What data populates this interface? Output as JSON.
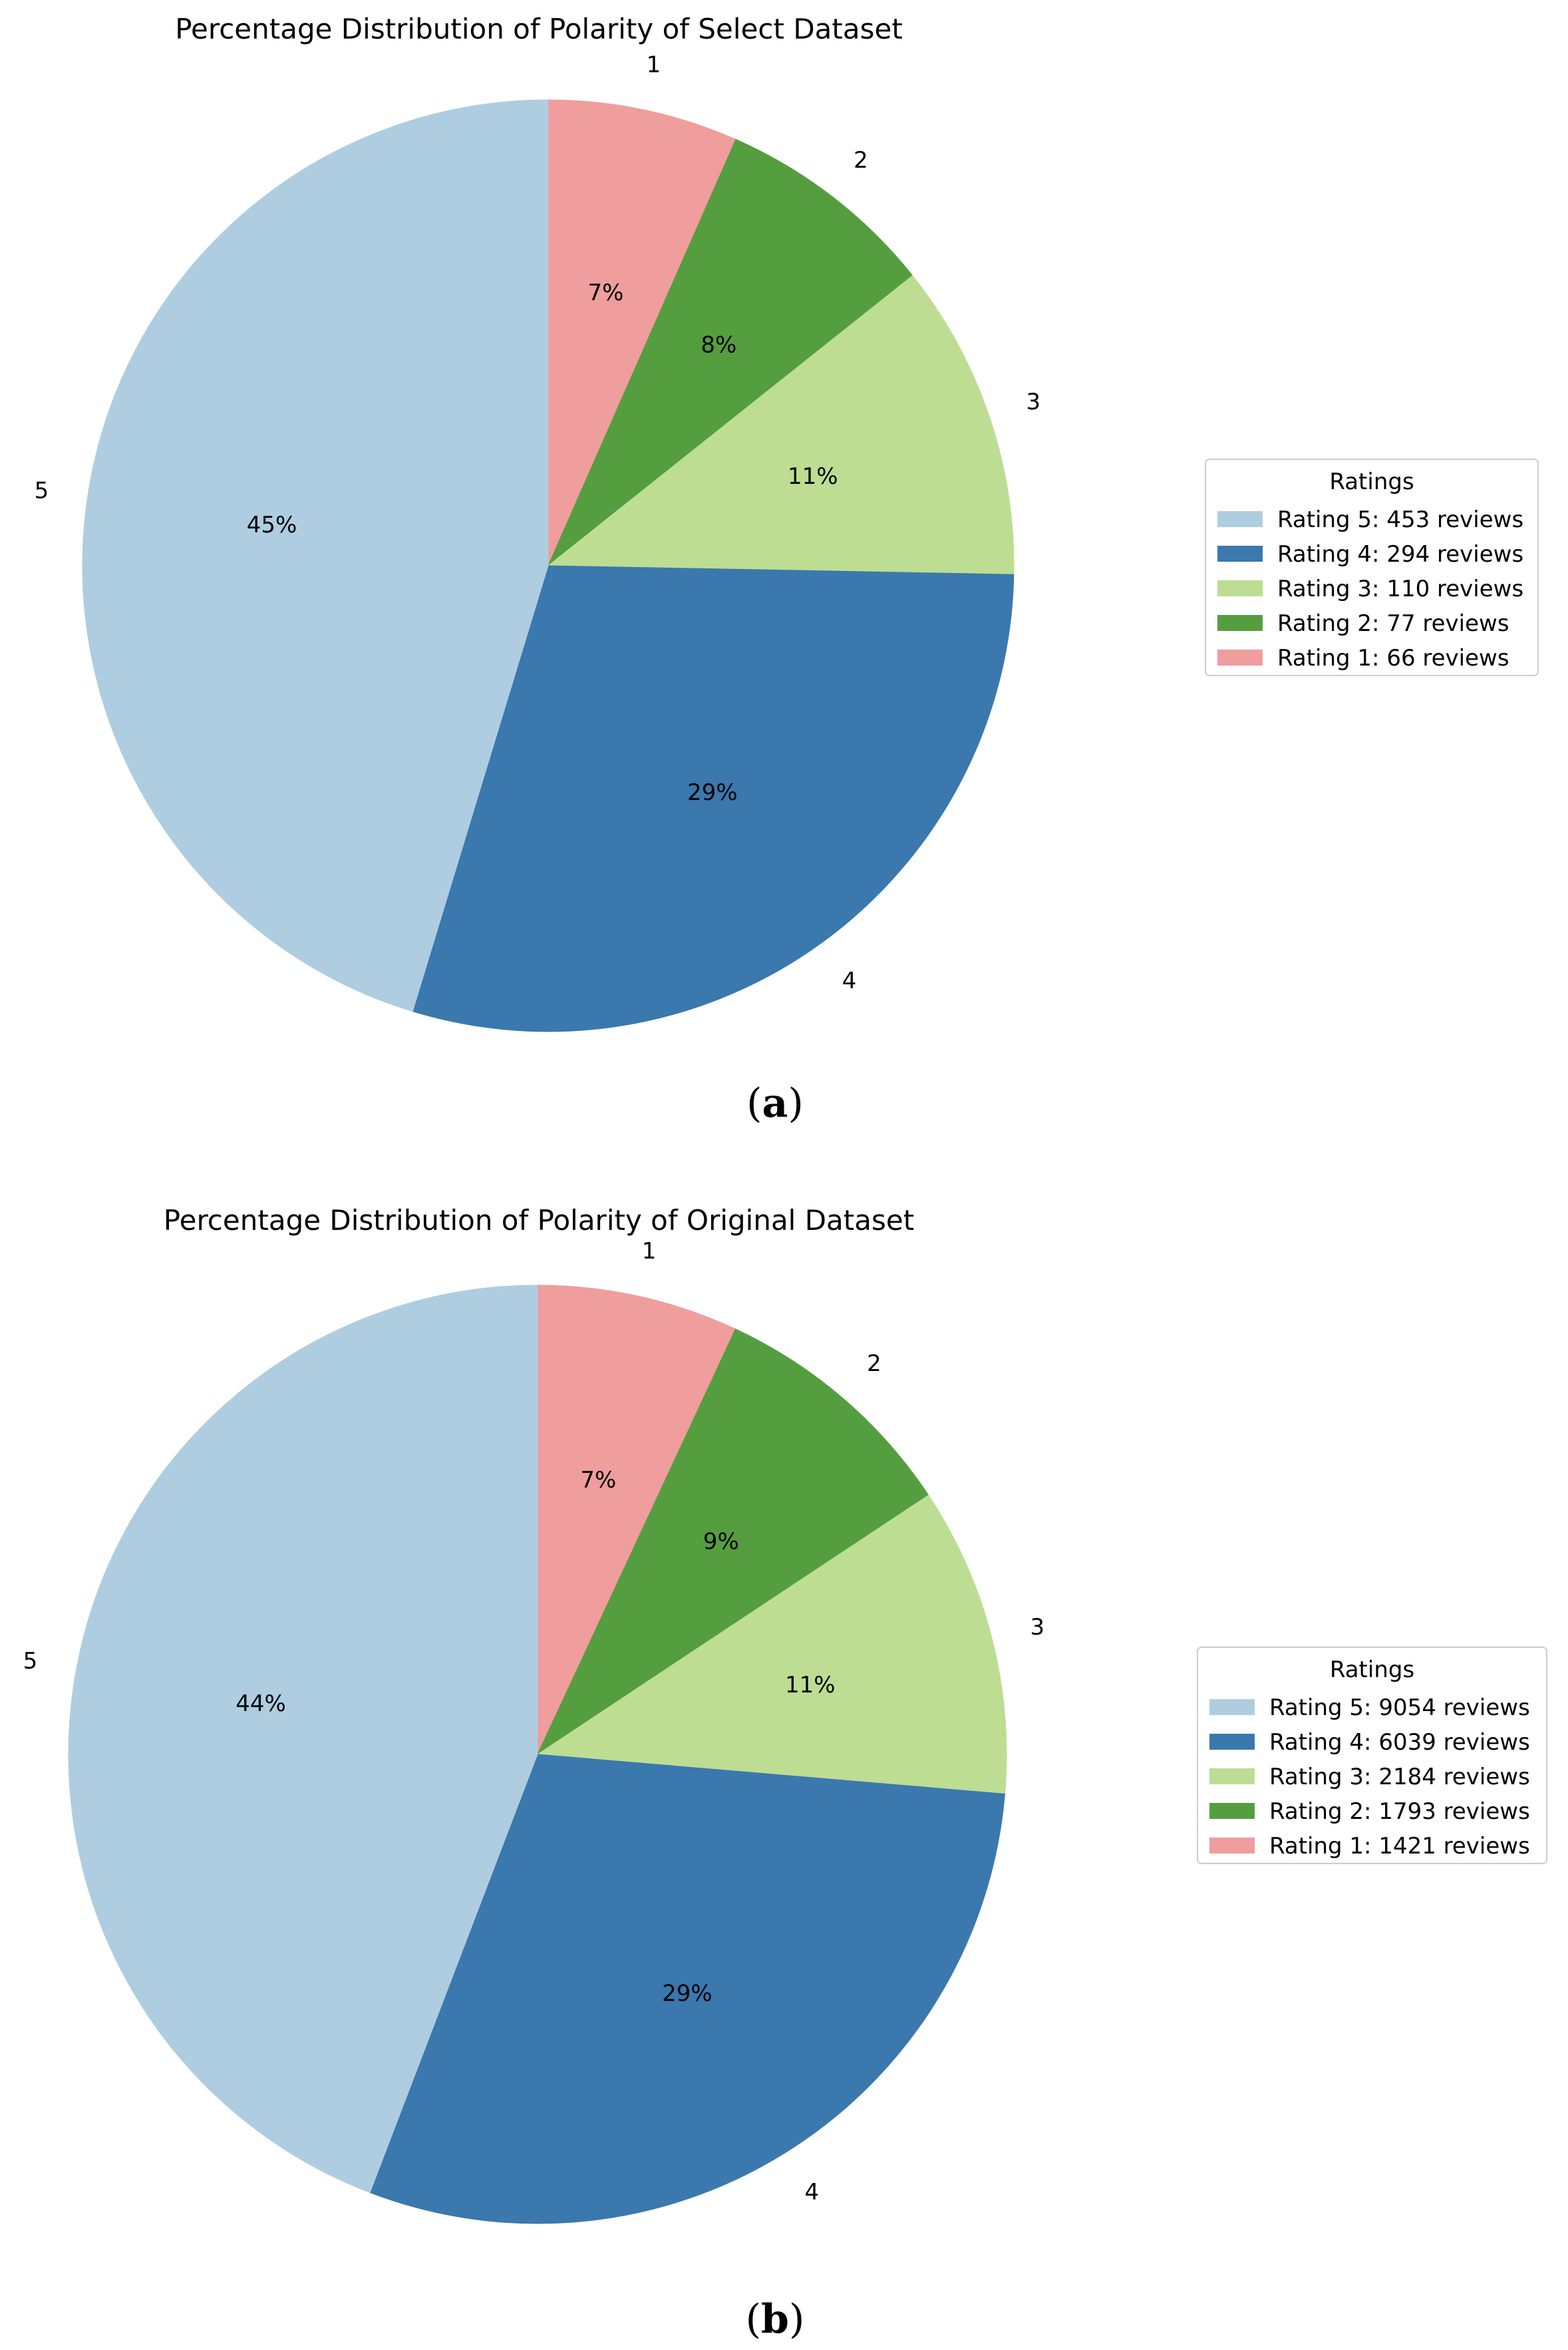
{
  "chart_data": [
    {
      "type": "pie",
      "title": "Percentage Distribution of Polarity of Select Dataset",
      "caption": "a",
      "legend_title": "Ratings",
      "legend_position": "right",
      "start": "top",
      "direction": "clockwise",
      "slices": [
        {
          "label": "1",
          "pct_label": "7%",
          "value": 66,
          "legend": "Rating 1: 66 reviews",
          "color": "#ef9d9d"
        },
        {
          "label": "2",
          "pct_label": "8%",
          "value": 77,
          "legend": "Rating 2: 77 reviews",
          "color": "#559e3f"
        },
        {
          "label": "3",
          "pct_label": "11%",
          "value": 110,
          "legend": "Rating 3: 110 reviews",
          "color": "#bddd93"
        },
        {
          "label": "4",
          "pct_label": "29%",
          "value": 294,
          "legend": "Rating 4: 294 reviews",
          "color": "#3a78ae"
        },
        {
          "label": "5",
          "pct_label": "45%",
          "value": 453,
          "legend": "Rating 5: 453 reviews",
          "color": "#aecde0"
        }
      ],
      "legend_order": [
        4,
        3,
        2,
        1,
        0
      ]
    },
    {
      "type": "pie",
      "title": "Percentage Distribution of Polarity of Original Dataset",
      "caption": "b",
      "legend_title": "Ratings",
      "legend_position": "right",
      "start": "top",
      "direction": "clockwise",
      "slices": [
        {
          "label": "1",
          "pct_label": "7%",
          "value": 1421,
          "legend": "Rating 1: 1421 reviews",
          "color": "#ef9d9d"
        },
        {
          "label": "2",
          "pct_label": "9%",
          "value": 1793,
          "legend": "Rating 2: 1793 reviews",
          "color": "#559e3f"
        },
        {
          "label": "3",
          "pct_label": "11%",
          "value": 2184,
          "legend": "Rating 3: 2184 reviews",
          "color": "#bddd93"
        },
        {
          "label": "4",
          "pct_label": "29%",
          "value": 6039,
          "legend": "Rating 4: 6039 reviews",
          "color": "#3a78ae"
        },
        {
          "label": "5",
          "pct_label": "44%",
          "value": 9054,
          "legend": "Rating 5: 9054 reviews",
          "color": "#aecde0"
        }
      ],
      "legend_order": [
        4,
        3,
        2,
        1,
        0
      ]
    }
  ]
}
